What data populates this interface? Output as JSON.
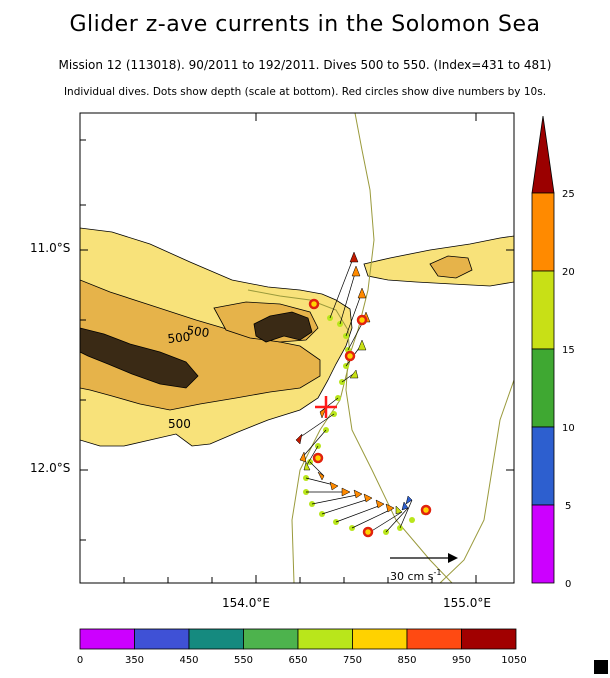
{
  "title": "Glider z-ave currents in the Solomon Sea",
  "subtitle1": "Mission 12 (113018). 90/2011 to 192/2011. Dives 500 to 550. (Index=431 to 481)",
  "subtitle2": "Individual dives. Dots show depth (scale at bottom). Red circles show dive numbers by 10s.",
  "chart_data": {
    "type": "map",
    "x_ticks": [
      "154.0°E",
      "155.0°E"
    ],
    "y_ticks": [
      "11.0°S",
      "12.0°S"
    ],
    "xlim": [
      153.2,
      155.2
    ],
    "ylim": [
      -12.5,
      -10.5
    ],
    "contour_labels": [
      "500",
      "500",
      "500"
    ],
    "scale_label": "30 cm s",
    "scale_exp": "-1",
    "depth_colorbar": {
      "ticks": [
        "0",
        "350",
        "450",
        "550",
        "650",
        "750",
        "850",
        "950",
        "1050"
      ],
      "colors": [
        "#cc00ff",
        "#3f51d6",
        "#158a7f",
        "#4db34d",
        "#b9e61b",
        "#ffd200",
        "#ff4a12",
        "#a10000"
      ]
    },
    "speed_colorbar": {
      "ticks": [
        "0",
        "5",
        "10",
        "15",
        "20",
        "25"
      ],
      "colors": [
        "#cc00ff",
        "#2d5fcf",
        "#3fa832",
        "#c8e016",
        "#ff8a00",
        "#9b0000"
      ]
    }
  }
}
